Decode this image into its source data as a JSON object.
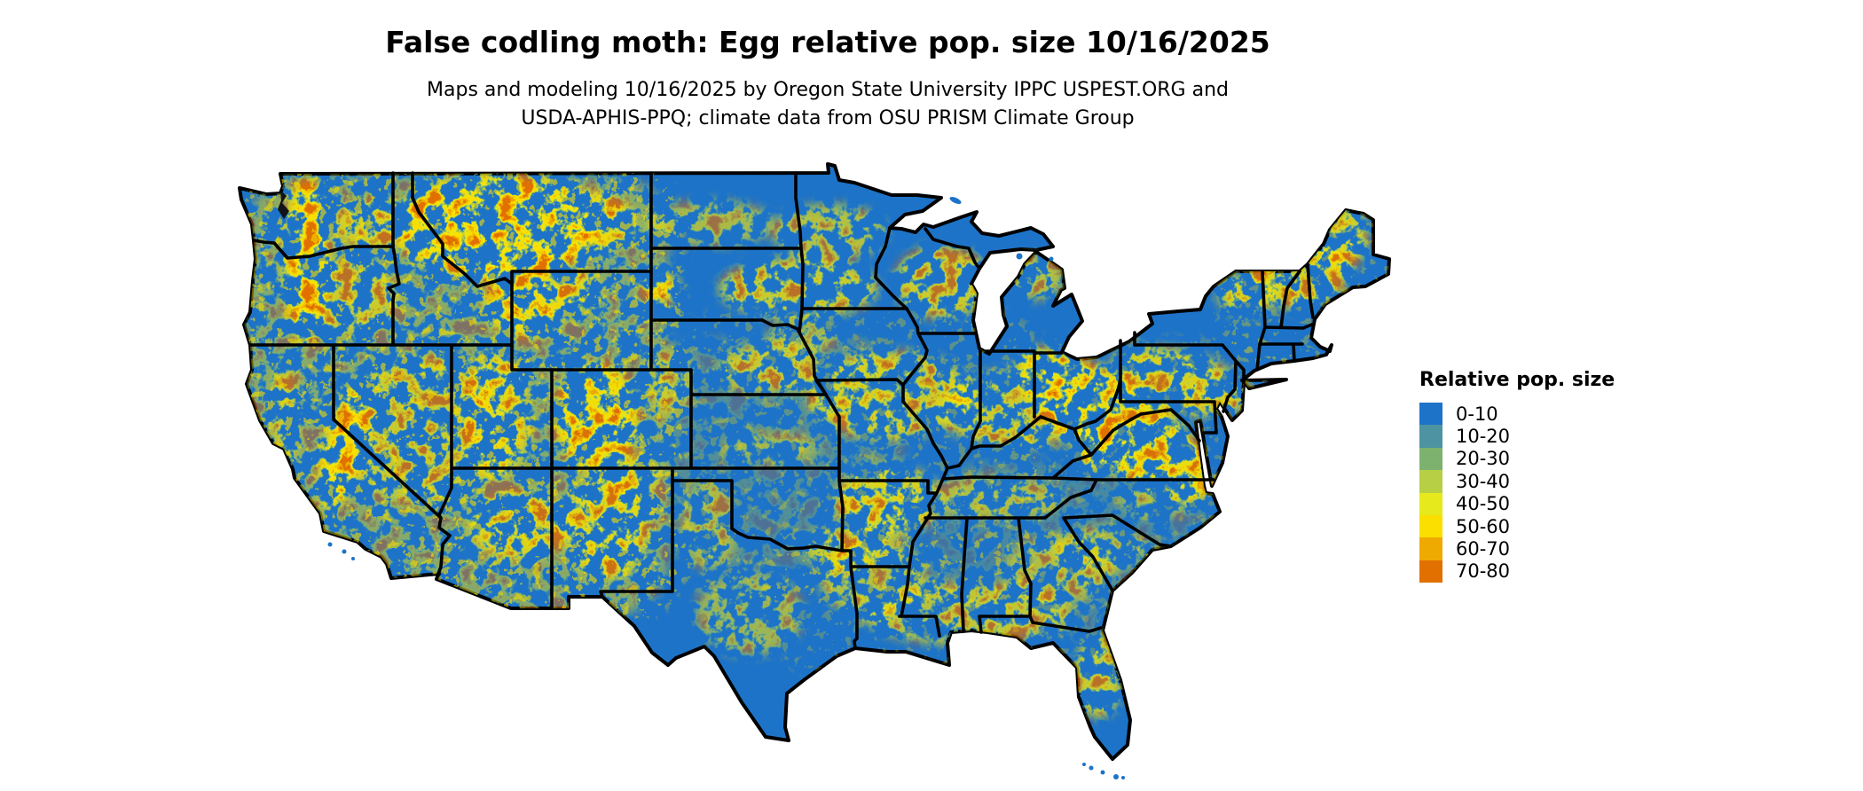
{
  "header": {
    "title": "False codling moth: Egg relative pop. size 10/16/2025",
    "subtitle_line1": "Maps and modeling 10/16/2025 by Oregon State University IPPC USPEST.ORG and",
    "subtitle_line2": "USDA-APHIS-PPQ; climate data from OSU PRISM Climate Group"
  },
  "legend": {
    "title": "Relative pop. size",
    "items": [
      {
        "label": "0-10",
        "color": "#1d73c8"
      },
      {
        "label": "10-20",
        "color": "#4d93a2"
      },
      {
        "label": "20-30",
        "color": "#7db26e"
      },
      {
        "label": "30-40",
        "color": "#b6cf45"
      },
      {
        "label": "40-50",
        "color": "#e6e91c"
      },
      {
        "label": "50-60",
        "color": "#fadf00"
      },
      {
        "label": "60-70",
        "color": "#efaa02"
      },
      {
        "label": "70-80",
        "color": "#e17000"
      }
    ]
  },
  "map": {
    "kind": "raster choropleth map",
    "region": "contiguous United States",
    "value_name": "Relative pop. size",
    "classes": [
      "0-10",
      "10-20",
      "20-30",
      "30-40",
      "40-50",
      "50-60",
      "60-70",
      "70-80"
    ],
    "base_color": "#1d73c8",
    "border_color": "#000000",
    "water_color": "#ffffff"
  }
}
